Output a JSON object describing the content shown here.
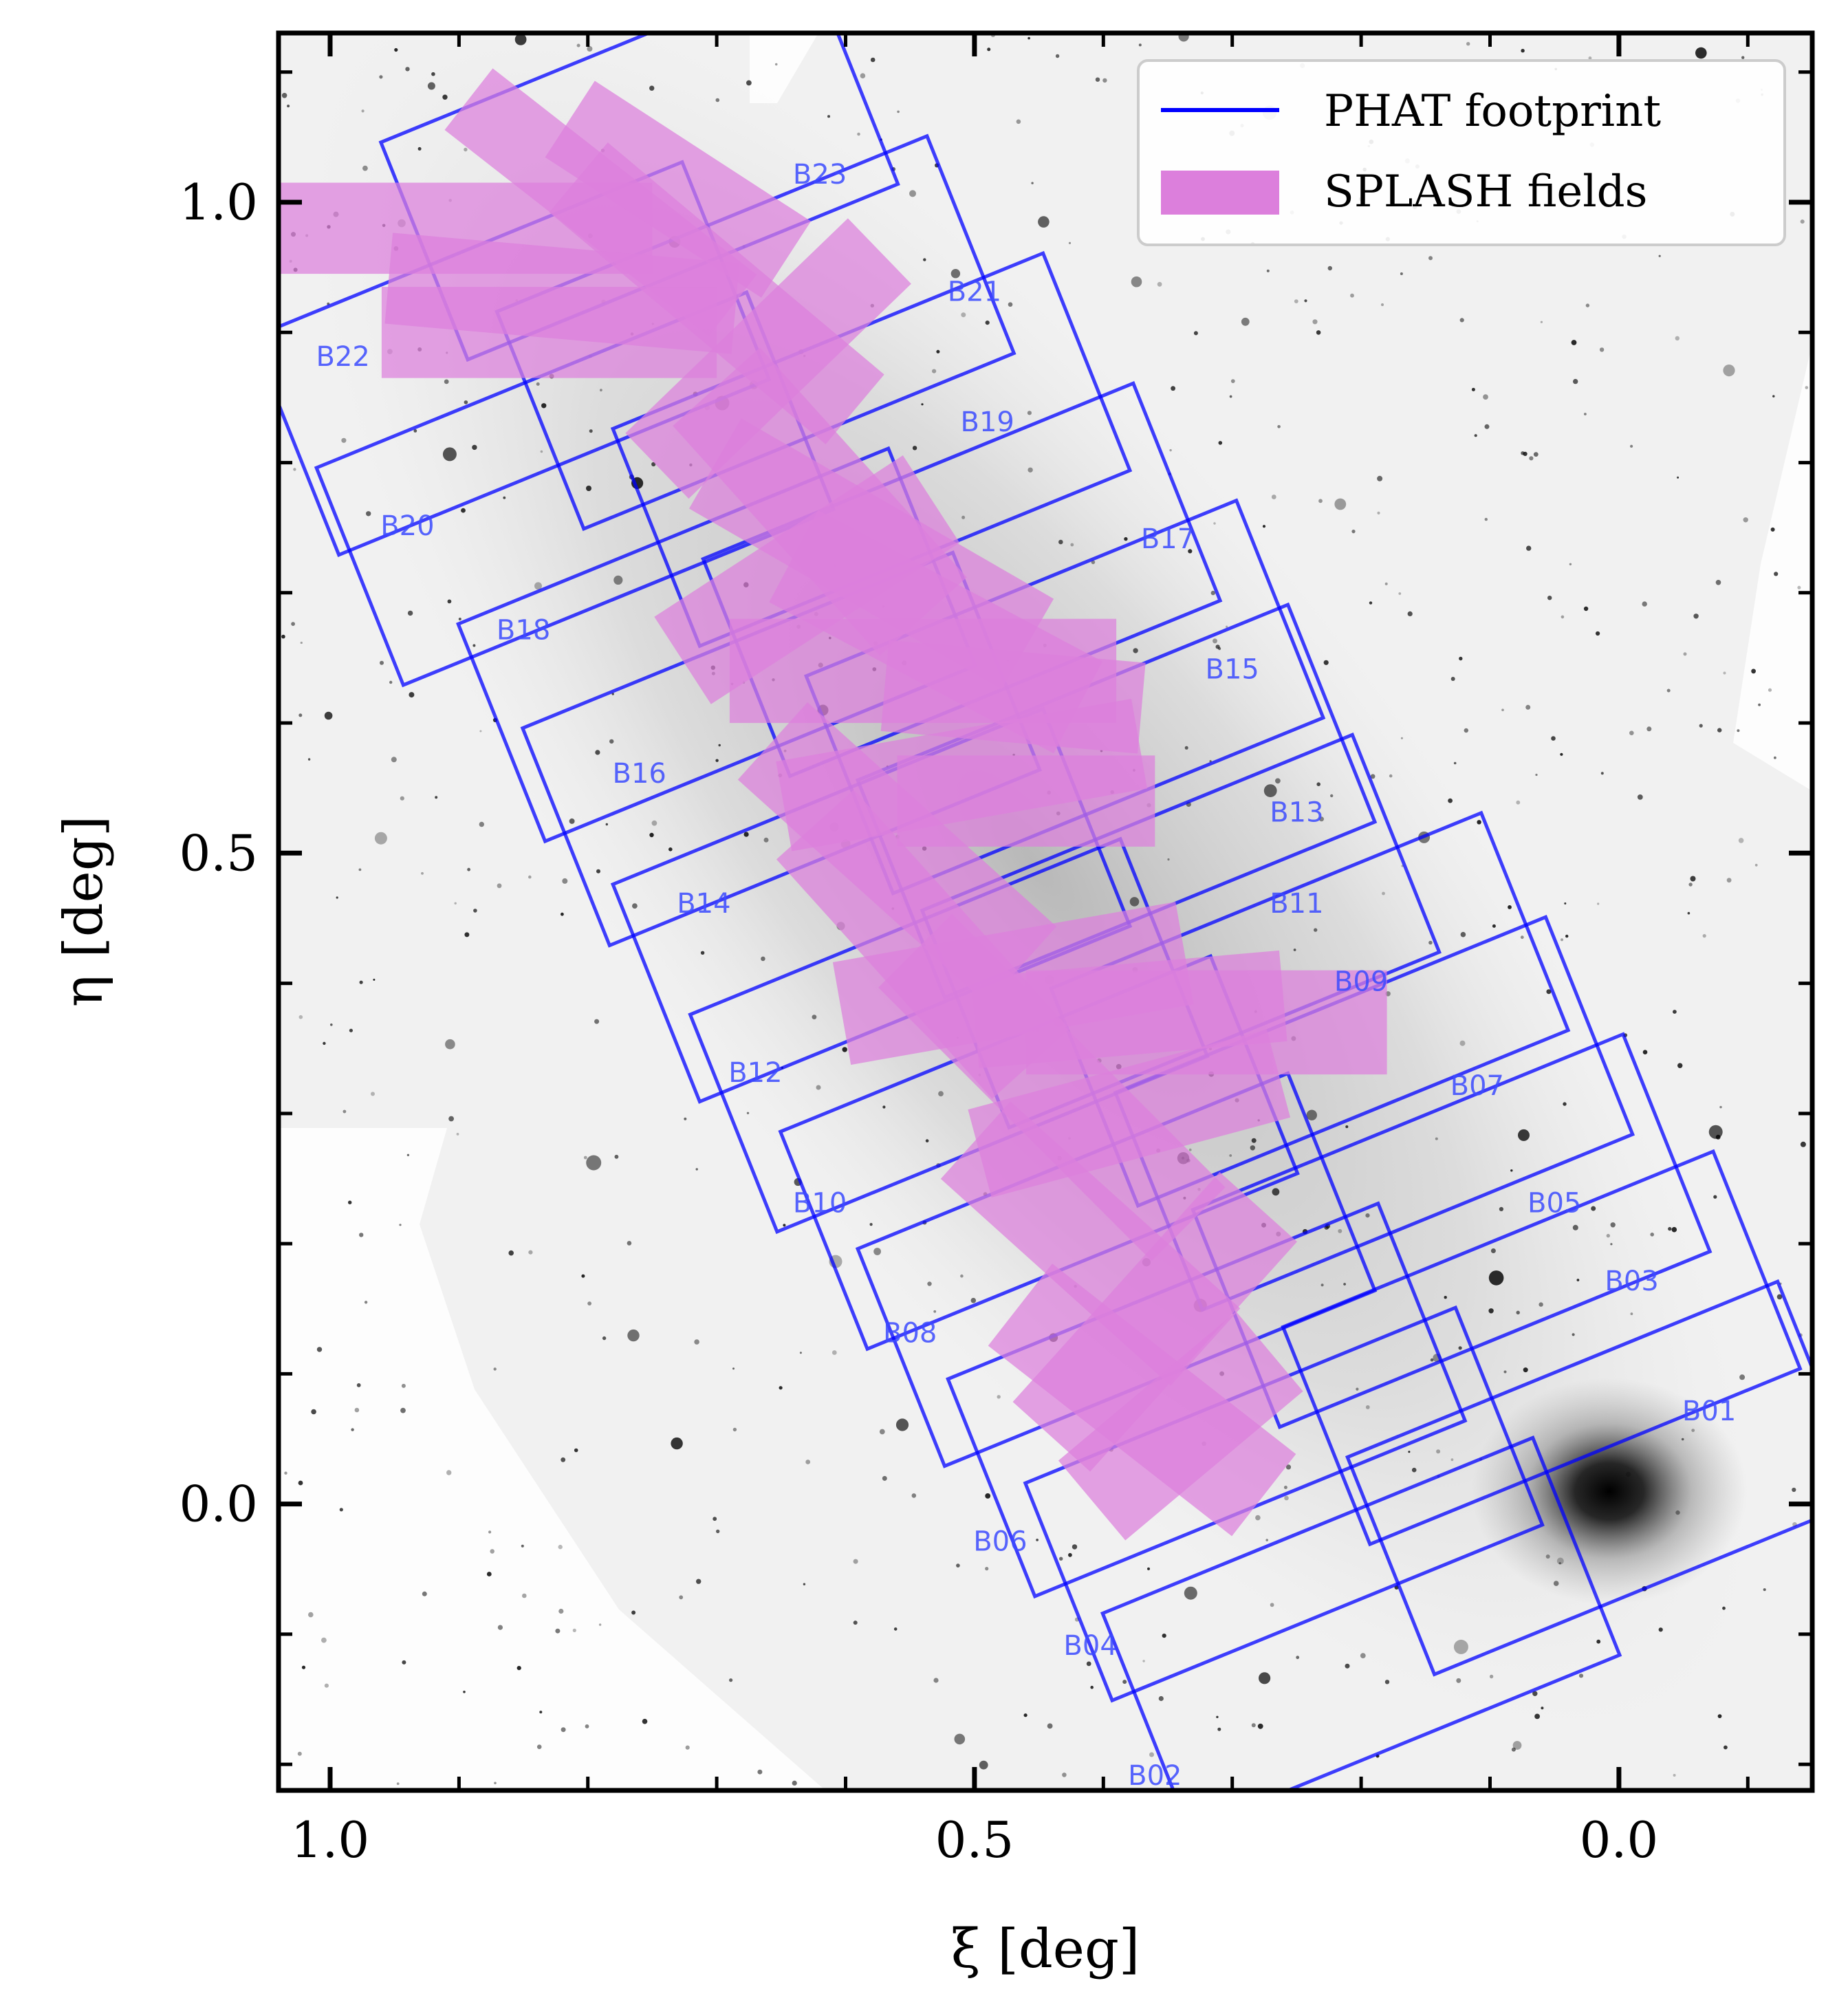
{
  "chart_data": {
    "type": "scatter",
    "xlabel": "ξ [deg]",
    "ylabel": "η [deg]",
    "xlim": [
      1.04,
      -0.15
    ],
    "ylim": [
      -0.22,
      1.13
    ],
    "x_inverted": true,
    "xticks_major": [
      1.0,
      0.5,
      0.0
    ],
    "xtick_labels": [
      "1.0",
      "0.5",
      "0.0"
    ],
    "yticks_major": [
      0.0,
      0.5,
      1.0
    ],
    "ytick_labels": [
      "0.0",
      "0.5",
      "1.0"
    ],
    "minor_tick_step": 0.1,
    "grid": false,
    "background": "grayscale sky image of M31 (Andromeda) centered at (0,0)",
    "legend": {
      "placement": "top-right",
      "entries": [
        {
          "label": "PHAT footprint",
          "color": "#0000ff",
          "kind": "line"
        },
        {
          "label": "SPLASH fields",
          "color": "#dc7fdc",
          "kind": "patch"
        }
      ]
    },
    "phat_bricks": [
      {
        "name": "B01",
        "center": [
          0.01,
          0.02
        ],
        "label_at": [
          -0.07,
          0.07
        ]
      },
      {
        "name": "B02",
        "center": [
          0.2,
          -0.1
        ],
        "label_at": [
          0.36,
          -0.21
        ]
      },
      {
        "name": "B03",
        "center": [
          0.06,
          0.12
        ],
        "label_at": [
          -0.01,
          0.17
        ]
      },
      {
        "name": "B04",
        "center": [
          0.26,
          0.0
        ],
        "label_at": [
          0.41,
          -0.11
        ]
      },
      {
        "name": "B05",
        "center": [
          0.13,
          0.21
        ],
        "label_at": [
          0.05,
          0.23
        ]
      },
      {
        "name": "B06",
        "center": [
          0.32,
          0.08
        ],
        "label_at": [
          0.48,
          -0.03
        ]
      },
      {
        "name": "B07",
        "center": [
          0.19,
          0.3
        ],
        "label_at": [
          0.11,
          0.32
        ]
      },
      {
        "name": "B08",
        "center": [
          0.39,
          0.18
        ],
        "label_at": [
          0.55,
          0.13
        ]
      },
      {
        "name": "B09",
        "center": [
          0.24,
          0.38
        ],
        "label_at": [
          0.2,
          0.4
        ]
      },
      {
        "name": "B10",
        "center": [
          0.45,
          0.27
        ],
        "label_at": [
          0.62,
          0.23
        ]
      },
      {
        "name": "B11",
        "center": [
          0.34,
          0.44
        ],
        "label_at": [
          0.25,
          0.46
        ]
      },
      {
        "name": "B12",
        "center": [
          0.52,
          0.36
        ],
        "label_at": [
          0.67,
          0.33
        ]
      },
      {
        "name": "B13",
        "center": [
          0.39,
          0.54
        ],
        "label_at": [
          0.25,
          0.53
        ]
      },
      {
        "name": "B14",
        "center": [
          0.58,
          0.46
        ],
        "label_at": [
          0.71,
          0.46
        ]
      },
      {
        "name": "B15",
        "center": [
          0.43,
          0.62
        ],
        "label_at": [
          0.3,
          0.64
        ]
      },
      {
        "name": "B16",
        "center": [
          0.65,
          0.58
        ],
        "label_at": [
          0.76,
          0.56
        ]
      },
      {
        "name": "B17",
        "center": [
          0.51,
          0.71
        ],
        "label_at": [
          0.35,
          0.74
        ]
      },
      {
        "name": "B18",
        "center": [
          0.7,
          0.66
        ],
        "label_at": [
          0.85,
          0.67
        ]
      },
      {
        "name": "B19",
        "center": [
          0.58,
          0.81
        ],
        "label_at": [
          0.49,
          0.83
        ]
      },
      {
        "name": "B20",
        "center": [
          0.81,
          0.78
        ],
        "label_at": [
          0.94,
          0.75
        ]
      },
      {
        "name": "B21",
        "center": [
          0.67,
          0.9
        ],
        "label_at": [
          0.5,
          0.93
        ]
      },
      {
        "name": "B22",
        "center": [
          0.86,
          0.88
        ],
        "label_at": [
          0.99,
          0.88
        ]
      },
      {
        "name": "B23",
        "center": [
          0.76,
          1.03
        ],
        "label_at": [
          0.62,
          1.02
        ]
      }
    ],
    "splash_fields": [
      {
        "center": [
          0.9,
          0.98
        ],
        "width": 0.3,
        "height": 0.07,
        "angle": 0
      },
      {
        "center": [
          0.79,
          1.0
        ],
        "width": 0.26,
        "height": 0.06,
        "angle": -38
      },
      {
        "center": [
          0.73,
          1.01
        ],
        "width": 0.2,
        "height": 0.07,
        "angle": -33
      },
      {
        "center": [
          0.82,
          0.93
        ],
        "width": 0.27,
        "height": 0.07,
        "angle": -5
      },
      {
        "center": [
          0.83,
          0.9
        ],
        "width": 0.26,
        "height": 0.07,
        "angle": 0
      },
      {
        "center": [
          0.7,
          0.93
        ],
        "width": 0.28,
        "height": 0.07,
        "angle": -40
      },
      {
        "center": [
          0.66,
          0.88
        ],
        "width": 0.24,
        "height": 0.07,
        "angle": 44
      },
      {
        "center": [
          0.62,
          0.77
        ],
        "width": 0.24,
        "height": 0.09,
        "angle": -48
      },
      {
        "center": [
          0.58,
          0.73
        ],
        "width": 0.28,
        "height": 0.08,
        "angle": -30
      },
      {
        "center": [
          0.63,
          0.71
        ],
        "width": 0.23,
        "height": 0.08,
        "angle": 33
      },
      {
        "center": [
          0.53,
          0.67
        ],
        "width": 0.25,
        "height": 0.08,
        "angle": -28
      },
      {
        "center": [
          0.54,
          0.64
        ],
        "width": 0.3,
        "height": 0.08,
        "angle": 0
      },
      {
        "center": [
          0.47,
          0.62
        ],
        "width": 0.2,
        "height": 0.07,
        "angle": -5
      },
      {
        "center": [
          0.51,
          0.56
        ],
        "width": 0.28,
        "height": 0.07,
        "angle": 10
      },
      {
        "center": [
          0.46,
          0.54
        ],
        "width": 0.2,
        "height": 0.07,
        "angle": 0
      },
      {
        "center": [
          0.56,
          0.5
        ],
        "width": 0.26,
        "height": 0.08,
        "angle": -42
      },
      {
        "center": [
          0.54,
          0.43
        ],
        "width": 0.25,
        "height": 0.08,
        "angle": -48
      },
      {
        "center": [
          0.47,
          0.4
        ],
        "width": 0.27,
        "height": 0.08,
        "angle": 10
      },
      {
        "center": [
          0.38,
          0.38
        ],
        "width": 0.24,
        "height": 0.07,
        "angle": 5
      },
      {
        "center": [
          0.32,
          0.37
        ],
        "width": 0.28,
        "height": 0.08,
        "angle": 0
      },
      {
        "center": [
          0.44,
          0.32
        ],
        "width": 0.3,
        "height": 0.08,
        "angle": -45
      },
      {
        "center": [
          0.38,
          0.3
        ],
        "width": 0.24,
        "height": 0.07,
        "angle": 15
      },
      {
        "center": [
          0.41,
          0.2
        ],
        "width": 0.24,
        "height": 0.08,
        "angle": -42
      },
      {
        "center": [
          0.36,
          0.14
        ],
        "width": 0.24,
        "height": 0.08,
        "angle": 48
      },
      {
        "center": [
          0.37,
          0.08
        ],
        "width": 0.24,
        "height": 0.08,
        "angle": -38
      },
      {
        "center": [
          0.34,
          0.06
        ],
        "width": 0.18,
        "height": 0.08,
        "angle": 40
      }
    ]
  }
}
